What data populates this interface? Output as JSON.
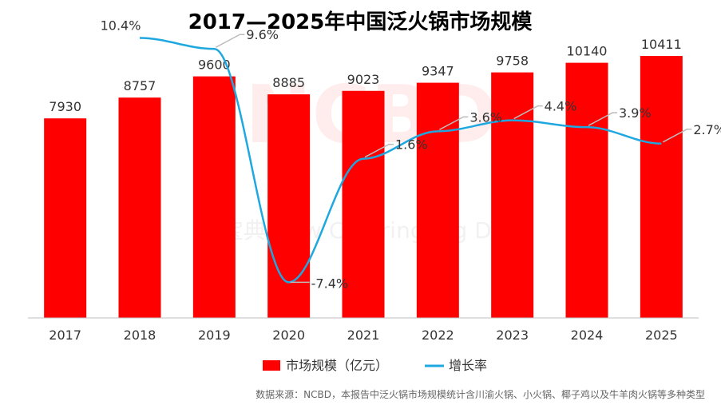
{
  "chart_data": {
    "type": "bar",
    "title": "2017—2025年中国泛火锅市场规模",
    "categories": [
      "2017",
      "2018",
      "2019",
      "2020",
      "2021",
      "2022",
      "2023",
      "2024",
      "2025"
    ],
    "series": [
      {
        "name": "市场规模（亿元）",
        "type": "bar",
        "values": [
          7930,
          8757,
          9600,
          8885,
          9023,
          9347,
          9758,
          10140,
          10411
        ],
        "color": "#ff0000"
      },
      {
        "name": "增长率",
        "type": "line",
        "values": [
          null,
          10.4,
          9.6,
          -7.4,
          1.6,
          3.6,
          4.4,
          3.9,
          2.7
        ],
        "labels": [
          "",
          "10.4%",
          "9.6%",
          "-7.4%",
          "1.6%",
          "3.6%",
          "4.4%",
          "3.9%",
          "2.7%"
        ],
        "color": "#1fa8e0"
      }
    ],
    "bar_ylim": [
      0,
      12000
    ],
    "line_ylim": [
      -10,
      12
    ],
    "legend_position": "bottom",
    "source_note": "数据来源：NCBD，本报告中泛火锅市场规模统计含川渝火锅、小火锅、椰子鸡以及牛羊肉火锅等多种类型",
    "watermark": "NCBD 餐宝典 New Catering Big Data"
  }
}
